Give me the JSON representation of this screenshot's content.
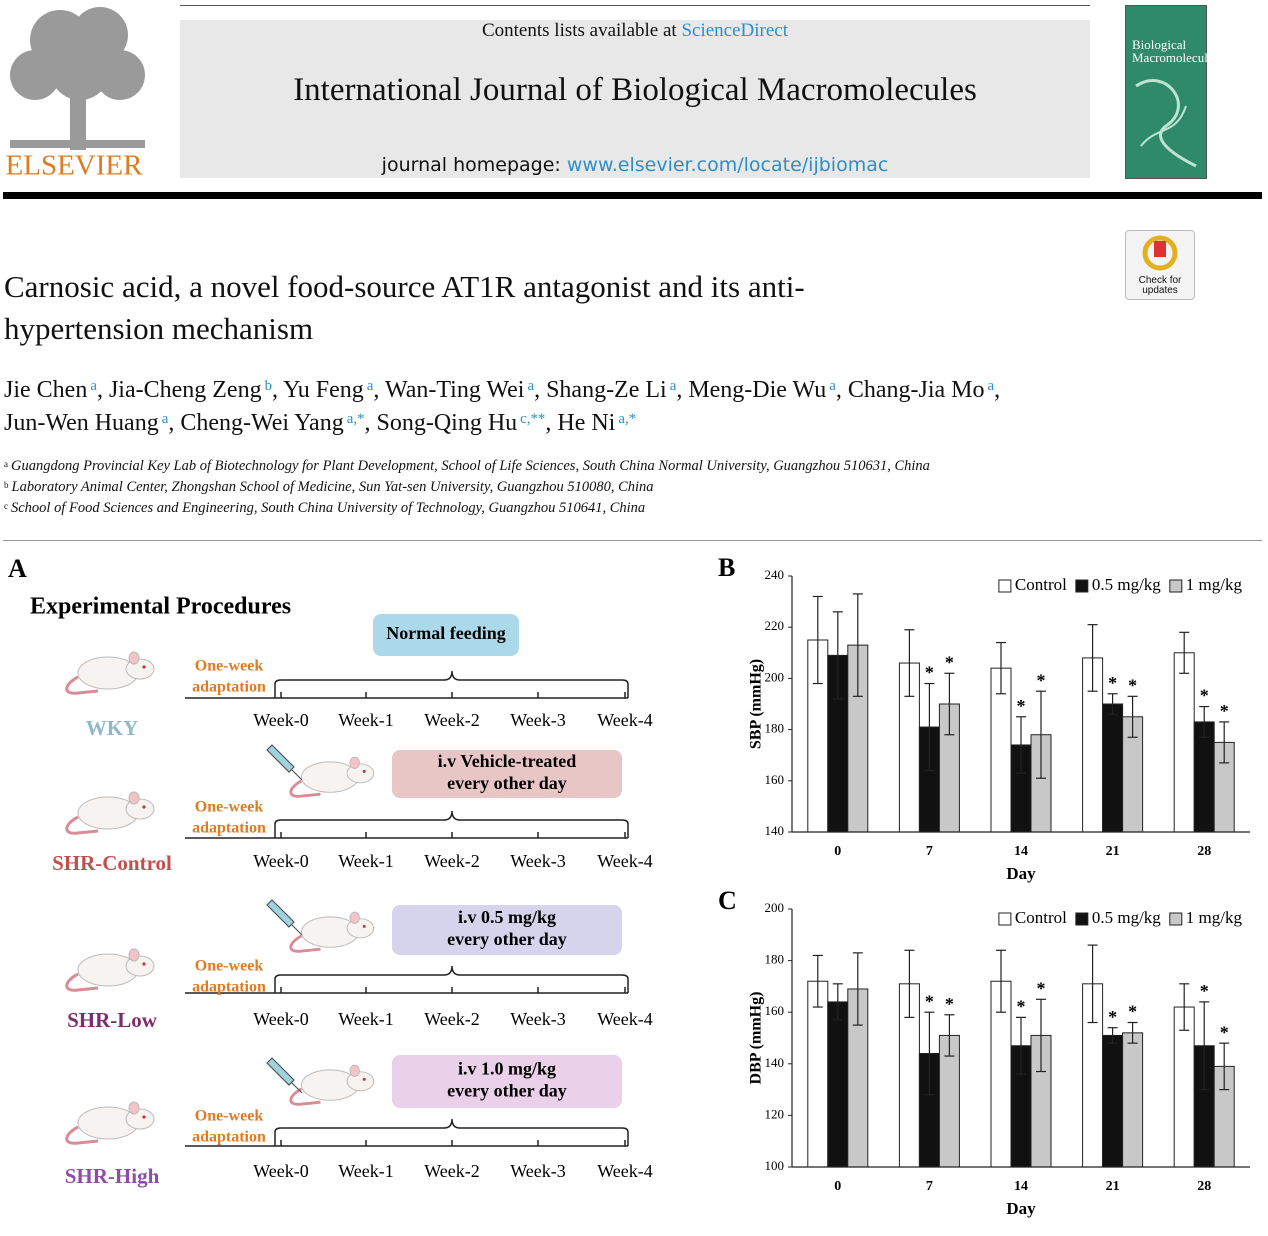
{
  "header": {
    "contents_prefix": "Contents lists available at",
    "contents_link": "ScienceDirect",
    "journal": "International Journal of Biological Macromolecules",
    "homepage_label": "journal homepage:",
    "homepage_url": "www.elsevier.com/locate/ijbiomac",
    "publisher": "ELSEVIER",
    "cover_title": "Biological Macromolecules"
  },
  "article": {
    "update_badge": "Check for updates",
    "title": "Carnosic acid, a novel food-source AT1R antagonist and its anti-hypertension mechanism",
    "authors": [
      {
        "name": "Jie Chen",
        "sup": "a",
        "after": ","
      },
      {
        "name": "Jia-Cheng Zeng",
        "sup": "b",
        "after": ","
      },
      {
        "name": "Yu Feng",
        "sup": "a",
        "after": ","
      },
      {
        "name": "Wan-Ting Wei",
        "sup": "a",
        "after": ","
      },
      {
        "name": "Shang-Ze Li",
        "sup": "a",
        "after": ","
      },
      {
        "name": "Meng-Die Wu",
        "sup": "a",
        "after": ","
      },
      {
        "name": "Chang-Jia Mo",
        "sup": "a",
        "after": ","
      },
      {
        "name": "Jun-Wen Huang",
        "sup": "a",
        "after": ","
      },
      {
        "name": "Cheng-Wei Yang",
        "sup": "a,*",
        "after": ","
      },
      {
        "name": "Song-Qing Hu",
        "sup": "c,**",
        "after": ","
      },
      {
        "name": "He Ni",
        "sup": "a,*"
      }
    ],
    "affiliations": [
      {
        "mark": "a",
        "text": "Guangdong Provincial Key Lab of Biotechnology for Plant Development, School of Life Sciences, South China Normal University, Guangzhou 510631, China"
      },
      {
        "mark": "b",
        "text": "Laboratory Animal Center, Zhongshan School of Medicine, Sun Yat-sen University, Guangzhou 510080, China"
      },
      {
        "mark": "c",
        "text": "School of Food Sciences and Engineering, South China University of Technology, Guangzhou 510641, China"
      }
    ]
  },
  "figure_a": {
    "label": "A",
    "title": "Experimental Procedures",
    "weeks": [
      "Week-0",
      "Week-1",
      "Week-2",
      "Week-3",
      "Week-4"
    ],
    "adaptation": [
      "One-week",
      "adaptation"
    ],
    "groups": [
      {
        "name": "WKY",
        "color": "#8fb9c9",
        "box": [
          "Normal feeding"
        ],
        "box_color": "#acd9ea"
      },
      {
        "name": "SHR-Control",
        "color": "#c0504d",
        "box": [
          "i.v Vehicle-treated",
          "every other day"
        ],
        "box_color": "#e9c6c6"
      },
      {
        "name": "SHR-Low",
        "color": "#7b2e6b",
        "box": [
          "i.v 0.5 mg/kg",
          "every other day"
        ],
        "box_color": "#d6d4ec"
      },
      {
        "name": "SHR-High",
        "color": "#8e4ca8",
        "box": [
          "i.v 1.0 mg/kg",
          "every other day"
        ],
        "box_color": "#ead0e9"
      }
    ]
  },
  "chart_data": [
    {
      "type": "bar",
      "panel": "B",
      "ylabel": "SBP (mmHg)",
      "xlabel": "Day",
      "categories": [
        "0",
        "7",
        "14",
        "21",
        "28"
      ],
      "ylim": [
        140,
        240
      ],
      "yticks": [
        140,
        160,
        180,
        200,
        220,
        240
      ],
      "legend": "top-right",
      "sig_label": "*",
      "series": [
        {
          "name": "Control",
          "color": "#ffffff",
          "values": [
            215,
            206,
            204,
            208,
            210
          ],
          "errors": [
            17,
            13,
            10,
            13,
            8
          ],
          "significant": [
            false,
            false,
            false,
            false,
            false
          ]
        },
        {
          "name": "0.5 mg/kg",
          "color": "#111111",
          "values": [
            209,
            181,
            174,
            190,
            183
          ],
          "errors": [
            17,
            17,
            11,
            4,
            6
          ],
          "significant": [
            false,
            true,
            true,
            true,
            true
          ]
        },
        {
          "name": "1 mg/kg",
          "color": "#c8c8c8",
          "values": [
            213,
            190,
            178,
            185,
            175
          ],
          "errors": [
            20,
            12,
            17,
            8,
            8
          ],
          "significant": [
            false,
            true,
            true,
            true,
            true
          ]
        }
      ]
    },
    {
      "type": "bar",
      "panel": "C",
      "ylabel": "DBP (mmHg)",
      "xlabel": "Day",
      "categories": [
        "0",
        "7",
        "14",
        "21",
        "28"
      ],
      "ylim": [
        100,
        200
      ],
      "yticks": [
        100,
        120,
        140,
        160,
        180,
        200
      ],
      "legend": "top-right",
      "sig_label": "*",
      "series": [
        {
          "name": "Control",
          "color": "#ffffff",
          "values": [
            172,
            171,
            172,
            171,
            162
          ],
          "errors": [
            10,
            13,
            12,
            15,
            9
          ],
          "significant": [
            false,
            false,
            false,
            false,
            false
          ]
        },
        {
          "name": "0.5 mg/kg",
          "color": "#111111",
          "values": [
            164,
            144,
            147,
            151,
            147
          ],
          "errors": [
            7,
            16,
            11,
            3,
            17
          ],
          "significant": [
            false,
            true,
            true,
            true,
            true
          ]
        },
        {
          "name": "1 mg/kg",
          "color": "#c8c8c8",
          "values": [
            169,
            151,
            151,
            152,
            139
          ],
          "errors": [
            14,
            8,
            14,
            4,
            9
          ],
          "significant": [
            false,
            true,
            true,
            true,
            true
          ]
        }
      ]
    }
  ]
}
